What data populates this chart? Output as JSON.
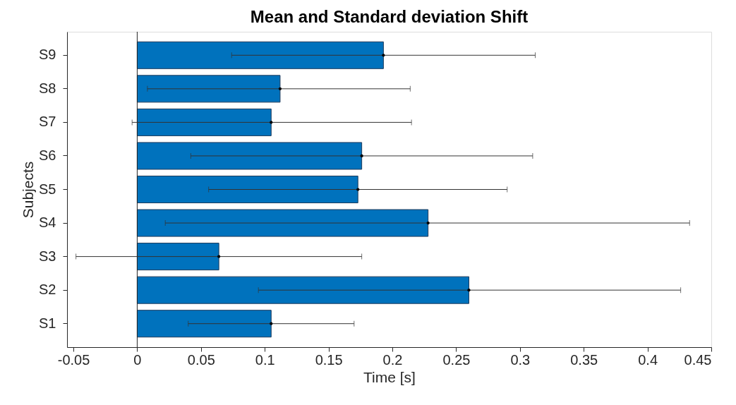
{
  "chart_data": {
    "type": "bar",
    "orientation": "horizontal",
    "title": "Mean and Standard deviation Shift",
    "xlabel": "Time [s]",
    "ylabel": "Subjects",
    "categories": [
      "S9",
      "S8",
      "S7",
      "S6",
      "S5",
      "S4",
      "S3",
      "S2",
      "S1"
    ],
    "values": [
      0.193,
      0.112,
      0.105,
      0.176,
      0.173,
      0.228,
      0.064,
      0.26,
      0.105
    ],
    "errors": [
      [
        0.074,
        0.312
      ],
      [
        0.008,
        0.214
      ],
      [
        -0.004,
        0.215
      ],
      [
        0.042,
        0.31
      ],
      [
        0.056,
        0.29
      ],
      [
        0.022,
        0.433
      ],
      [
        -0.048,
        0.176
      ],
      [
        0.095,
        0.426
      ],
      [
        0.04,
        0.17
      ]
    ],
    "color": "#0072bd",
    "marker": "circle",
    "xlim": [
      -0.055,
      0.45
    ],
    "xticks": [
      -0.05,
      0,
      0.05,
      0.1,
      0.15,
      0.2,
      0.25,
      0.3,
      0.35,
      0.4,
      0.45
    ],
    "ref_lines": [
      {
        "axis": "x",
        "value": 0,
        "color": "#262626"
      }
    ]
  }
}
